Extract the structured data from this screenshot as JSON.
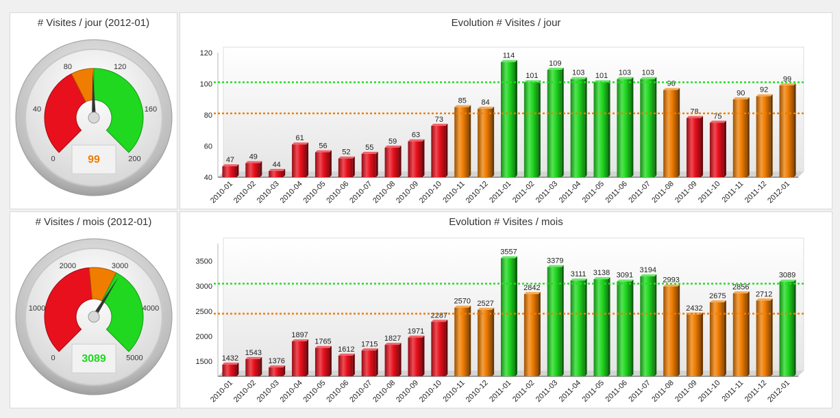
{
  "colors": {
    "red": "#e8101c",
    "orange": "#f07d00",
    "green": "#1fd81f",
    "ref_green": "#22dd22",
    "ref_orange": "#f07d00"
  },
  "gauges": [
    {
      "title": "# Visites / jour (2012-01)",
      "min": 0,
      "max": 200,
      "ticks": [
        0,
        40,
        80,
        120,
        160,
        200
      ],
      "segments": [
        {
          "from": 0,
          "to": 80,
          "color": "red"
        },
        {
          "from": 80,
          "to": 100,
          "color": "orange"
        },
        {
          "from": 100,
          "to": 200,
          "color": "green"
        }
      ],
      "value": 99,
      "readout": "99",
      "readout_color": "orange"
    },
    {
      "title": "# Visites / mois (2012-01)",
      "min": 0,
      "max": 5000,
      "ticks": [
        0,
        1000,
        2000,
        3000,
        4000,
        5000
      ],
      "segments": [
        {
          "from": 0,
          "to": 2400,
          "color": "red"
        },
        {
          "from": 2400,
          "to": 3000,
          "color": "orange"
        },
        {
          "from": 3000,
          "to": 5000,
          "color": "green"
        }
      ],
      "value": 3089,
      "readout": "3089",
      "readout_color": "green"
    }
  ],
  "chart_data": [
    {
      "type": "bar",
      "title": "Evolution # Visites / jour",
      "xlabel": "",
      "ylabel": "",
      "ylim": [
        40,
        120
      ],
      "yticks": [
        40,
        60,
        80,
        100,
        120
      ],
      "grid": false,
      "reference_lines": [
        {
          "value": 101,
          "color": "ref_green"
        },
        {
          "value": 81,
          "color": "ref_orange"
        }
      ],
      "categories": [
        "2010-01",
        "2010-02",
        "2010-03",
        "2010-04",
        "2010-05",
        "2010-06",
        "2010-07",
        "2010-08",
        "2010-09",
        "2010-10",
        "2010-11",
        "2010-12",
        "2011-01",
        "2011-02",
        "2011-03",
        "2011-04",
        "2011-05",
        "2011-06",
        "2011-07",
        "2011-08",
        "2011-09",
        "2011-10",
        "2011-11",
        "2011-12",
        "2012-01"
      ],
      "values": [
        47,
        49,
        44,
        61,
        56,
        52,
        55,
        59,
        63,
        73,
        85,
        84,
        114,
        101,
        109,
        103,
        101,
        103,
        103,
        96,
        78,
        75,
        90,
        92,
        99
      ],
      "labels": [
        "47",
        "49",
        "44",
        "61",
        "56",
        "52",
        "55",
        "59",
        "63",
        "73",
        "85",
        "84",
        "114",
        "101",
        "109",
        "103",
        "101",
        "103",
        "103",
        "96",
        "78",
        "75",
        "90",
        "92",
        "99"
      ],
      "bar_colors": [
        "red",
        "red",
        "red",
        "red",
        "red",
        "red",
        "red",
        "red",
        "red",
        "red",
        "orange",
        "orange",
        "green",
        "green",
        "green",
        "green",
        "green",
        "green",
        "green",
        "orange",
        "red",
        "red",
        "orange",
        "orange",
        "orange"
      ]
    },
    {
      "type": "bar",
      "title": "Evolution # Visites / mois",
      "xlabel": "",
      "ylabel": "",
      "ylim": [
        1200,
        3850
      ],
      "yticks": [
        1500,
        2000,
        2500,
        3000,
        3500
      ],
      "grid": false,
      "reference_lines": [
        {
          "value": 3050,
          "color": "ref_green"
        },
        {
          "value": 2450,
          "color": "ref_orange"
        }
      ],
      "categories": [
        "2010-01",
        "2010-02",
        "2010-03",
        "2010-04",
        "2010-05",
        "2010-06",
        "2010-07",
        "2010-08",
        "2010-09",
        "2010-10",
        "2010-11",
        "2010-12",
        "2011-01",
        "2011-02",
        "2011-03",
        "2011-04",
        "2011-05",
        "2011-06",
        "2011-07",
        "2011-08",
        "2011-09",
        "2011-10",
        "2011-11",
        "2011-12",
        "2012-01"
      ],
      "values": [
        1432,
        1543,
        1376,
        1897,
        1765,
        1612,
        1715,
        1827,
        1971,
        2287,
        2570,
        2527,
        3557,
        2842,
        3379,
        3111,
        3138,
        3091,
        3194,
        2993,
        2432,
        2675,
        2856,
        2712,
        3089
      ],
      "labels": [
        "1432",
        "1543",
        "1376",
        "1897",
        "1765",
        "1612",
        "1715",
        "1827",
        "1971",
        "2287",
        "2570",
        "2527",
        "3557",
        "2842",
        "3379",
        "3111",
        "3138",
        "3091",
        "3194",
        "2993",
        "2432",
        "2675",
        "2856",
        "2712",
        "3089"
      ],
      "bar_colors": [
        "red",
        "red",
        "red",
        "red",
        "red",
        "red",
        "red",
        "red",
        "red",
        "red",
        "orange",
        "orange",
        "green",
        "orange",
        "green",
        "green",
        "green",
        "green",
        "green",
        "orange",
        "orange",
        "orange",
        "orange",
        "orange",
        "green"
      ]
    }
  ]
}
